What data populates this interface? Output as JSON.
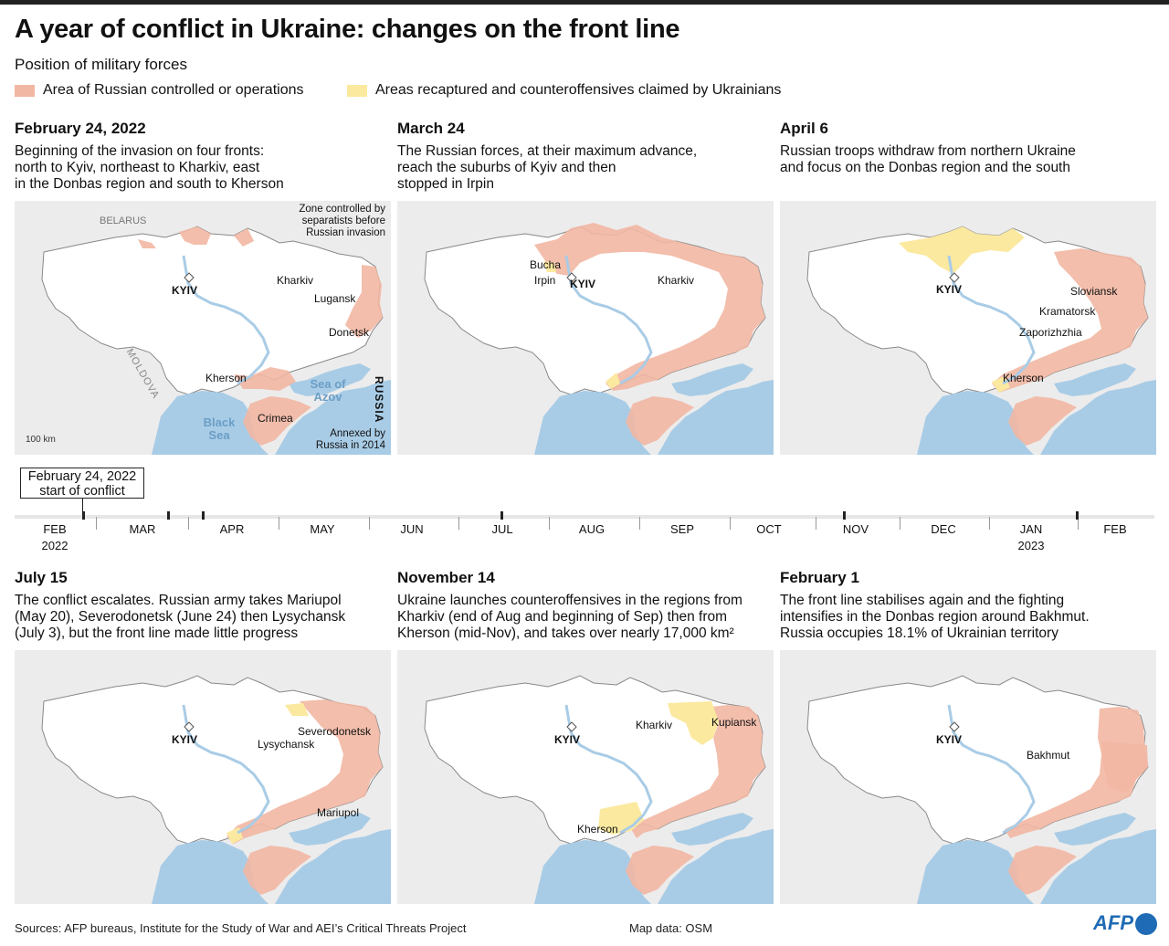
{
  "title": "A year of conflict in Ukraine: changes on the front line",
  "subtitle": "Position of military forces",
  "legend": [
    {
      "label": "Area of Russian controlled or operations",
      "color": "#f2b7a3"
    },
    {
      "label": "Areas recaptured and counteroffensives claimed by Ukrainians",
      "color": "#fbe9a0"
    }
  ],
  "colors": {
    "land": "#ffffff",
    "outside": "#ececec",
    "sea": "#a9cce6",
    "russian": "#f2b7a3",
    "ukrainian": "#fbe9a0",
    "border": "#888888"
  },
  "panels": [
    {
      "date": "February 24, 2022",
      "desc": [
        "Beginning of the invasion on four fronts:",
        "north to Kyiv, northeast to Kharkiv, east",
        "in the Donbas region and south to Kherson"
      ],
      "labels": {
        "belarus": "BELARUS",
        "moldova": "MOLDOVA",
        "russia": "RUSSIA",
        "kyiv": "KYIV",
        "kharkiv": "Kharkiv",
        "lugansk": "Lugansk",
        "donetsk": "Donetsk",
        "kherson": "Kherson",
        "crimea": "Crimea",
        "sea_of_azov": "Sea of Azov",
        "black_sea": "Black Sea",
        "zone_note": "Zone controlled by separatists before Russian invasion",
        "annexed_note": "Annexed by Russia in 2014",
        "scale": "100 km"
      }
    },
    {
      "date": "March 24",
      "desc": [
        "The Russian forces, at their maximum advance,",
        "reach the suburbs of Kyiv and then",
        "stopped in Irpin"
      ],
      "labels": {
        "bucha": "Bucha",
        "irpin": "Irpin",
        "kyiv": "KYIV",
        "kharkiv": "Kharkiv"
      }
    },
    {
      "date": "April 6",
      "desc": [
        "Russian troops withdraw from northern Ukraine",
        "and focus on the Donbas region and the south"
      ],
      "labels": {
        "kyiv": "KYIV",
        "sloviansk": "Sloviansk",
        "kramatorsk": "Kramatorsk",
        "zaporizhzhia": "Zaporizhzhia",
        "kherson": "Kherson"
      }
    },
    {
      "date": "July 15",
      "desc": [
        "The conflict escalates. Russian army takes Mariupol",
        "(May 20), Severodonetsk (June 24) then Lysychansk",
        "(July 3), but the front line made little progress"
      ],
      "labels": {
        "kyiv": "KYIV",
        "severodonetsk": "Severodonetsk",
        "lysychansk": "Lysychansk",
        "mariupol": "Mariupol"
      }
    },
    {
      "date": "November 14",
      "desc": [
        "Ukraine launches counteroffensives in the regions from",
        "Kharkiv (end of Aug and beginning of Sep) then from",
        "Kherson (mid-Nov), and takes over nearly 17,000 km²"
      ],
      "labels": {
        "kyiv": "KYIV",
        "kharkiv": "Kharkiv",
        "kupiansk": "Kupiansk",
        "kherson": "Kherson"
      }
    },
    {
      "date": "February 1",
      "desc": [
        "The front line stabilises again and the fighting",
        "intensifies in the Donbas region around Bakhmut.",
        "Russia occupies 18.1% of Ukrainian territory"
      ],
      "labels": {
        "kyiv": "KYIV",
        "bakhmut": "Bakhmut"
      }
    }
  ],
  "timeline": {
    "callout_line1": "February 24, 2022",
    "callout_line2": "start of conflict",
    "months": [
      "FEB",
      "MAR",
      "APR",
      "MAY",
      "JUN",
      "JUL",
      "AUG",
      "SEP",
      "OCT",
      "NOV",
      "DEC",
      "JAN",
      "FEB"
    ],
    "year_start": "2022",
    "year_end": "2023"
  },
  "footer": {
    "sources": "Sources: AFP bureaus, Institute for the Study of War and AEI’s Critical Threats Project",
    "map_data": "Map data: OSM",
    "logo": "AFP"
  }
}
